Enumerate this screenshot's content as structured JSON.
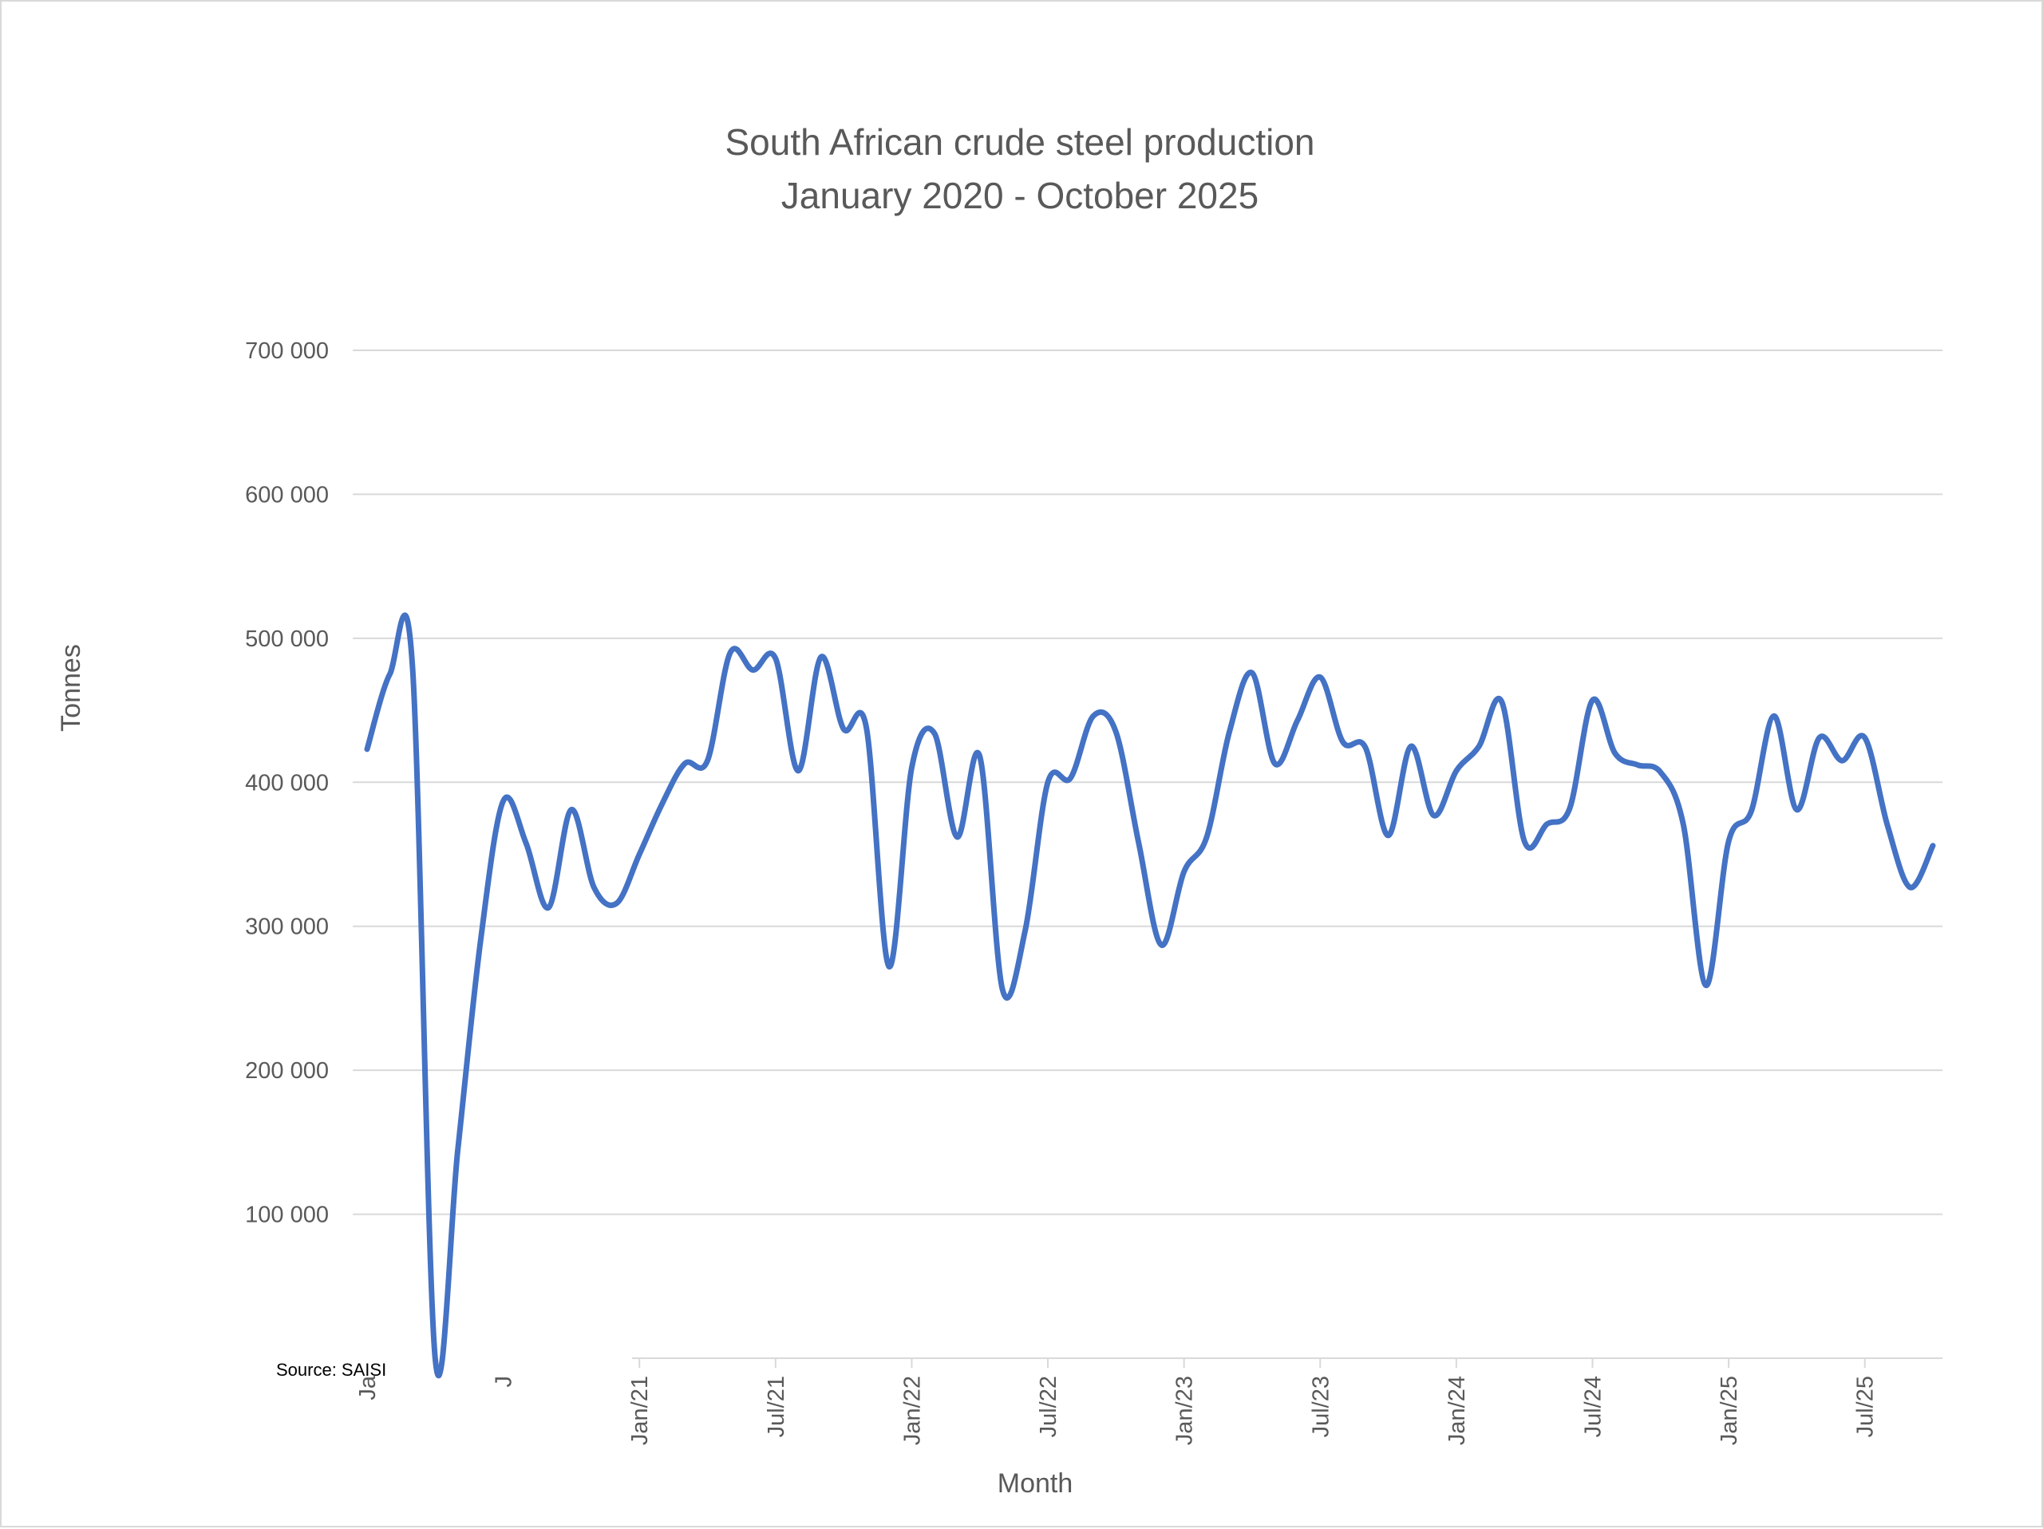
{
  "chart_data": {
    "type": "line",
    "title": "South African crude steel production",
    "subtitle": "January 2020 - October 2025",
    "xlabel": "Month",
    "ylabel": "Tonnes",
    "source": "Source: SAISI",
    "ylim": [
      0,
      700000
    ],
    "yticks": [
      100000,
      200000,
      300000,
      400000,
      500000,
      600000,
      700000
    ],
    "ytick_labels": [
      "100 000",
      "200 000",
      "300 000",
      "400 000",
      "500 000",
      "600 000",
      "700 000"
    ],
    "xticks": [
      {
        "date": "2020-01",
        "label": "Ja"
      },
      {
        "date": "2020-07",
        "label": "J"
      },
      {
        "date": "2021-01",
        "label": "Jan/21"
      },
      {
        "date": "2021-07",
        "label": "Jul/21"
      },
      {
        "date": "2022-01",
        "label": "Jan/22"
      },
      {
        "date": "2022-07",
        "label": "Jul/22"
      },
      {
        "date": "2023-01",
        "label": "Jan/23"
      },
      {
        "date": "2023-07",
        "label": "Jul/23"
      },
      {
        "date": "2024-01",
        "label": "Jan/24"
      },
      {
        "date": "2024-07",
        "label": "Jul/24"
      },
      {
        "date": "2025-01",
        "label": "Jan/25"
      },
      {
        "date": "2025-07",
        "label": "Jul/25"
      }
    ],
    "grid": true,
    "series": [
      {
        "color": "#4472c4",
        "x": [
          "2020-01",
          "2020-02",
          "2020-03",
          "2020-04",
          "2020-05",
          "2020-06",
          "2020-07",
          "2020-08",
          "2020-09",
          "2020-10",
          "2020-11",
          "2020-12",
          "2021-01",
          "2021-02",
          "2021-03",
          "2021-04",
          "2021-05",
          "2021-06",
          "2021-07",
          "2021-08",
          "2021-09",
          "2021-10",
          "2021-11",
          "2021-12",
          "2022-01",
          "2022-02",
          "2022-03",
          "2022-04",
          "2022-05",
          "2022-06",
          "2022-07",
          "2022-08",
          "2022-09",
          "2022-10",
          "2022-11",
          "2022-12",
          "2023-01",
          "2023-02",
          "2023-03",
          "2023-04",
          "2023-05",
          "2023-06",
          "2023-07",
          "2023-08",
          "2023-09",
          "2023-10",
          "2023-11",
          "2023-12",
          "2024-01",
          "2024-02",
          "2024-03",
          "2024-04",
          "2024-05",
          "2024-06",
          "2024-07",
          "2024-08",
          "2024-09",
          "2024-10",
          "2024-11",
          "2024-12",
          "2025-01",
          "2025-02",
          "2025-03",
          "2025-04",
          "2025-05",
          "2025-06",
          "2025-07",
          "2025-08",
          "2025-09",
          "2025-10"
        ],
        "values": [
          423000,
          475000,
          480000,
          0,
          145000,
          290000,
          387000,
          358000,
          313000,
          381000,
          327000,
          316000,
          350000,
          385000,
          413000,
          415000,
          490000,
          478000,
          486000,
          408000,
          487000,
          437000,
          438000,
          272000,
          410000,
          434000,
          362000,
          418000,
          256000,
          297000,
          400000,
          403000,
          446000,
          435000,
          358000,
          287000,
          338000,
          362000,
          435000,
          476000,
          413000,
          443000,
          473000,
          428000,
          424000,
          363000,
          425000,
          377000,
          408000,
          425000,
          456000,
          359000,
          371000,
          382000,
          457000,
          420000,
          412000,
          407000,
          371000,
          259000,
          359000,
          380000,
          446000,
          381000,
          431000,
          415000,
          431000,
          370000,
          327000,
          356000
        ]
      }
    ]
  }
}
